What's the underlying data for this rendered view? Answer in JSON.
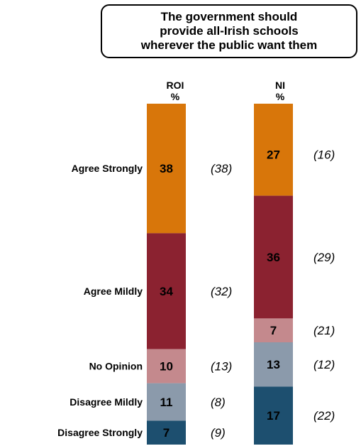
{
  "title_lines": [
    "The government should",
    "provide all-Irish schools",
    "wherever the public want them"
  ],
  "columns": [
    {
      "name": "ROI",
      "unit": "%"
    },
    {
      "name": "NI",
      "unit": "%"
    }
  ],
  "chart_data": {
    "type": "bar",
    "stacked": true,
    "categories": [
      "Agree Strongly",
      "Agree Mildly",
      "No Opinion",
      "Disagree Mildly",
      "Disagree Strongly"
    ],
    "colors": [
      "#d8760a",
      "#8b2230",
      "#c4898d",
      "#8b9aab",
      "#1d4f6f"
    ],
    "series": [
      {
        "name": "ROI",
        "values": [
          38,
          34,
          10,
          11,
          7
        ],
        "previous": [
          "(38)",
          "(32)",
          "(13)",
          "(8)",
          "(9)"
        ]
      },
      {
        "name": "NI",
        "values": [
          27,
          36,
          7,
          13,
          17
        ],
        "previous": [
          "(16)",
          "(29)",
          "(21)",
          "(12)",
          "(22)"
        ]
      }
    ]
  }
}
